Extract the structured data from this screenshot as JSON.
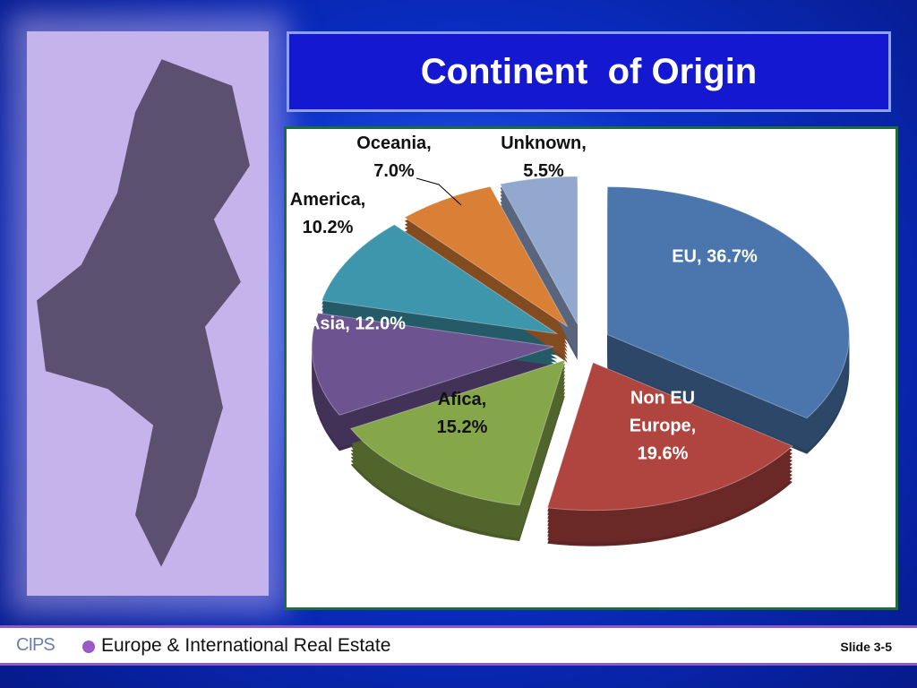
{
  "chart_data": {
    "type": "pie",
    "title": "Continent  of Origin",
    "values": [
      36.7,
      19.6,
      15.2,
      12.0,
      10.2,
      7.0,
      5.5
    ],
    "value_labels": [
      "EU, 36.7%",
      "Non EU Europe, 19.6%",
      "Afica, 15.2%",
      "Asia, 12.0%",
      "America, 10.2%",
      "Oceania, 7.0%",
      "Unknown, 5.5%"
    ],
    "colors": [
      "#4a76ad",
      "#b0453f",
      "#86a64a",
      "#6e5391",
      "#3e96ad",
      "#d97f36",
      "#92a8cf"
    ]
  },
  "footer": {
    "logo": "CIPS",
    "text": "Europe & International Real Estate",
    "slide": "Slide 3-5"
  }
}
